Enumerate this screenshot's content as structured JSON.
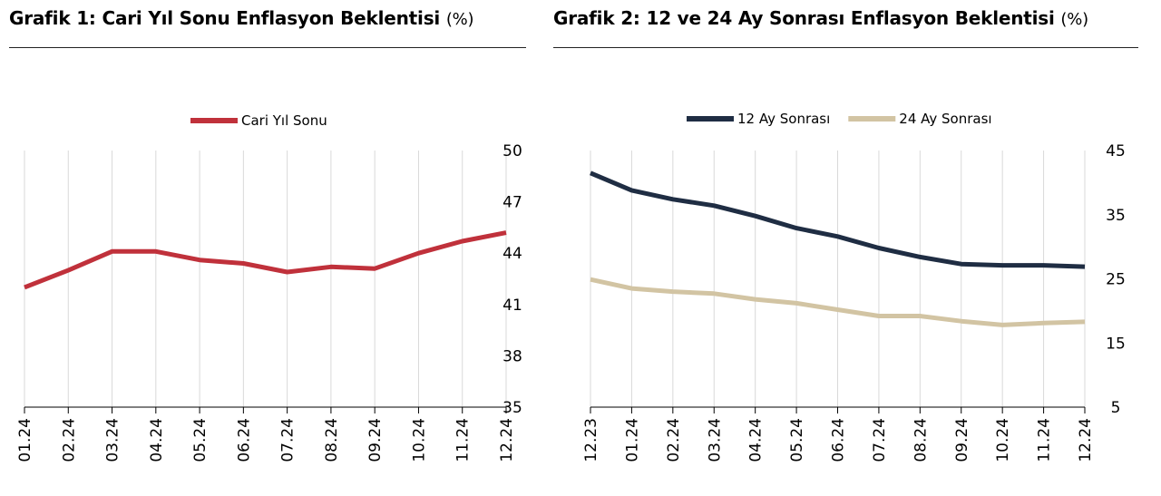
{
  "chart_data": [
    {
      "type": "line",
      "title": "Grafik 1: Cari Yıl Sonu Enflasyon Beklentisi",
      "unit": "(%)",
      "categories": [
        "01.24",
        "02.24",
        "03.24",
        "04.24",
        "05.24",
        "06.24",
        "07.24",
        "08.24",
        "09.24",
        "10.24",
        "11.24",
        "12.24"
      ],
      "series": [
        {
          "name": "Cari Yıl Sonu",
          "color": "#c0313b",
          "values": [
            42.0,
            43.0,
            44.1,
            44.1,
            43.6,
            43.4,
            42.9,
            43.2,
            43.1,
            44.0,
            44.7,
            45.2
          ]
        }
      ],
      "yticks": [
        "50",
        "47",
        "44",
        "41",
        "38",
        "35"
      ],
      "ylim": [
        35,
        50
      ],
      "yaxis_side": "right",
      "grid": "vertical",
      "legend": "top"
    },
    {
      "type": "line",
      "title": "Grafik 2: 12 ve 24 Ay Sonrası Enflasyon Beklentisi",
      "unit": "(%)",
      "categories": [
        "12.23",
        "01.24",
        "02.24",
        "03.24",
        "04.24",
        "05.24",
        "06.24",
        "07.24",
        "08.24",
        "09.24",
        "10.24",
        "11.24",
        "12.24"
      ],
      "series": [
        {
          "name": "12 Ay Sonrası",
          "color": "#1f2d43",
          "values": [
            41.5,
            38.8,
            37.4,
            36.4,
            34.8,
            32.9,
            31.6,
            29.8,
            28.4,
            27.3,
            27.1,
            27.1,
            26.9
          ]
        },
        {
          "name": "24 Ay Sonrası",
          "color": "#d2c4a3",
          "values": [
            24.9,
            23.5,
            23.0,
            22.7,
            21.8,
            21.2,
            20.2,
            19.2,
            19.2,
            18.4,
            17.8,
            18.1,
            18.3
          ]
        }
      ],
      "yticks": [
        "45",
        "35",
        "25",
        "15",
        "5"
      ],
      "ylim": [
        5,
        45
      ],
      "yaxis_side": "right",
      "grid": "vertical",
      "legend": "top"
    }
  ]
}
